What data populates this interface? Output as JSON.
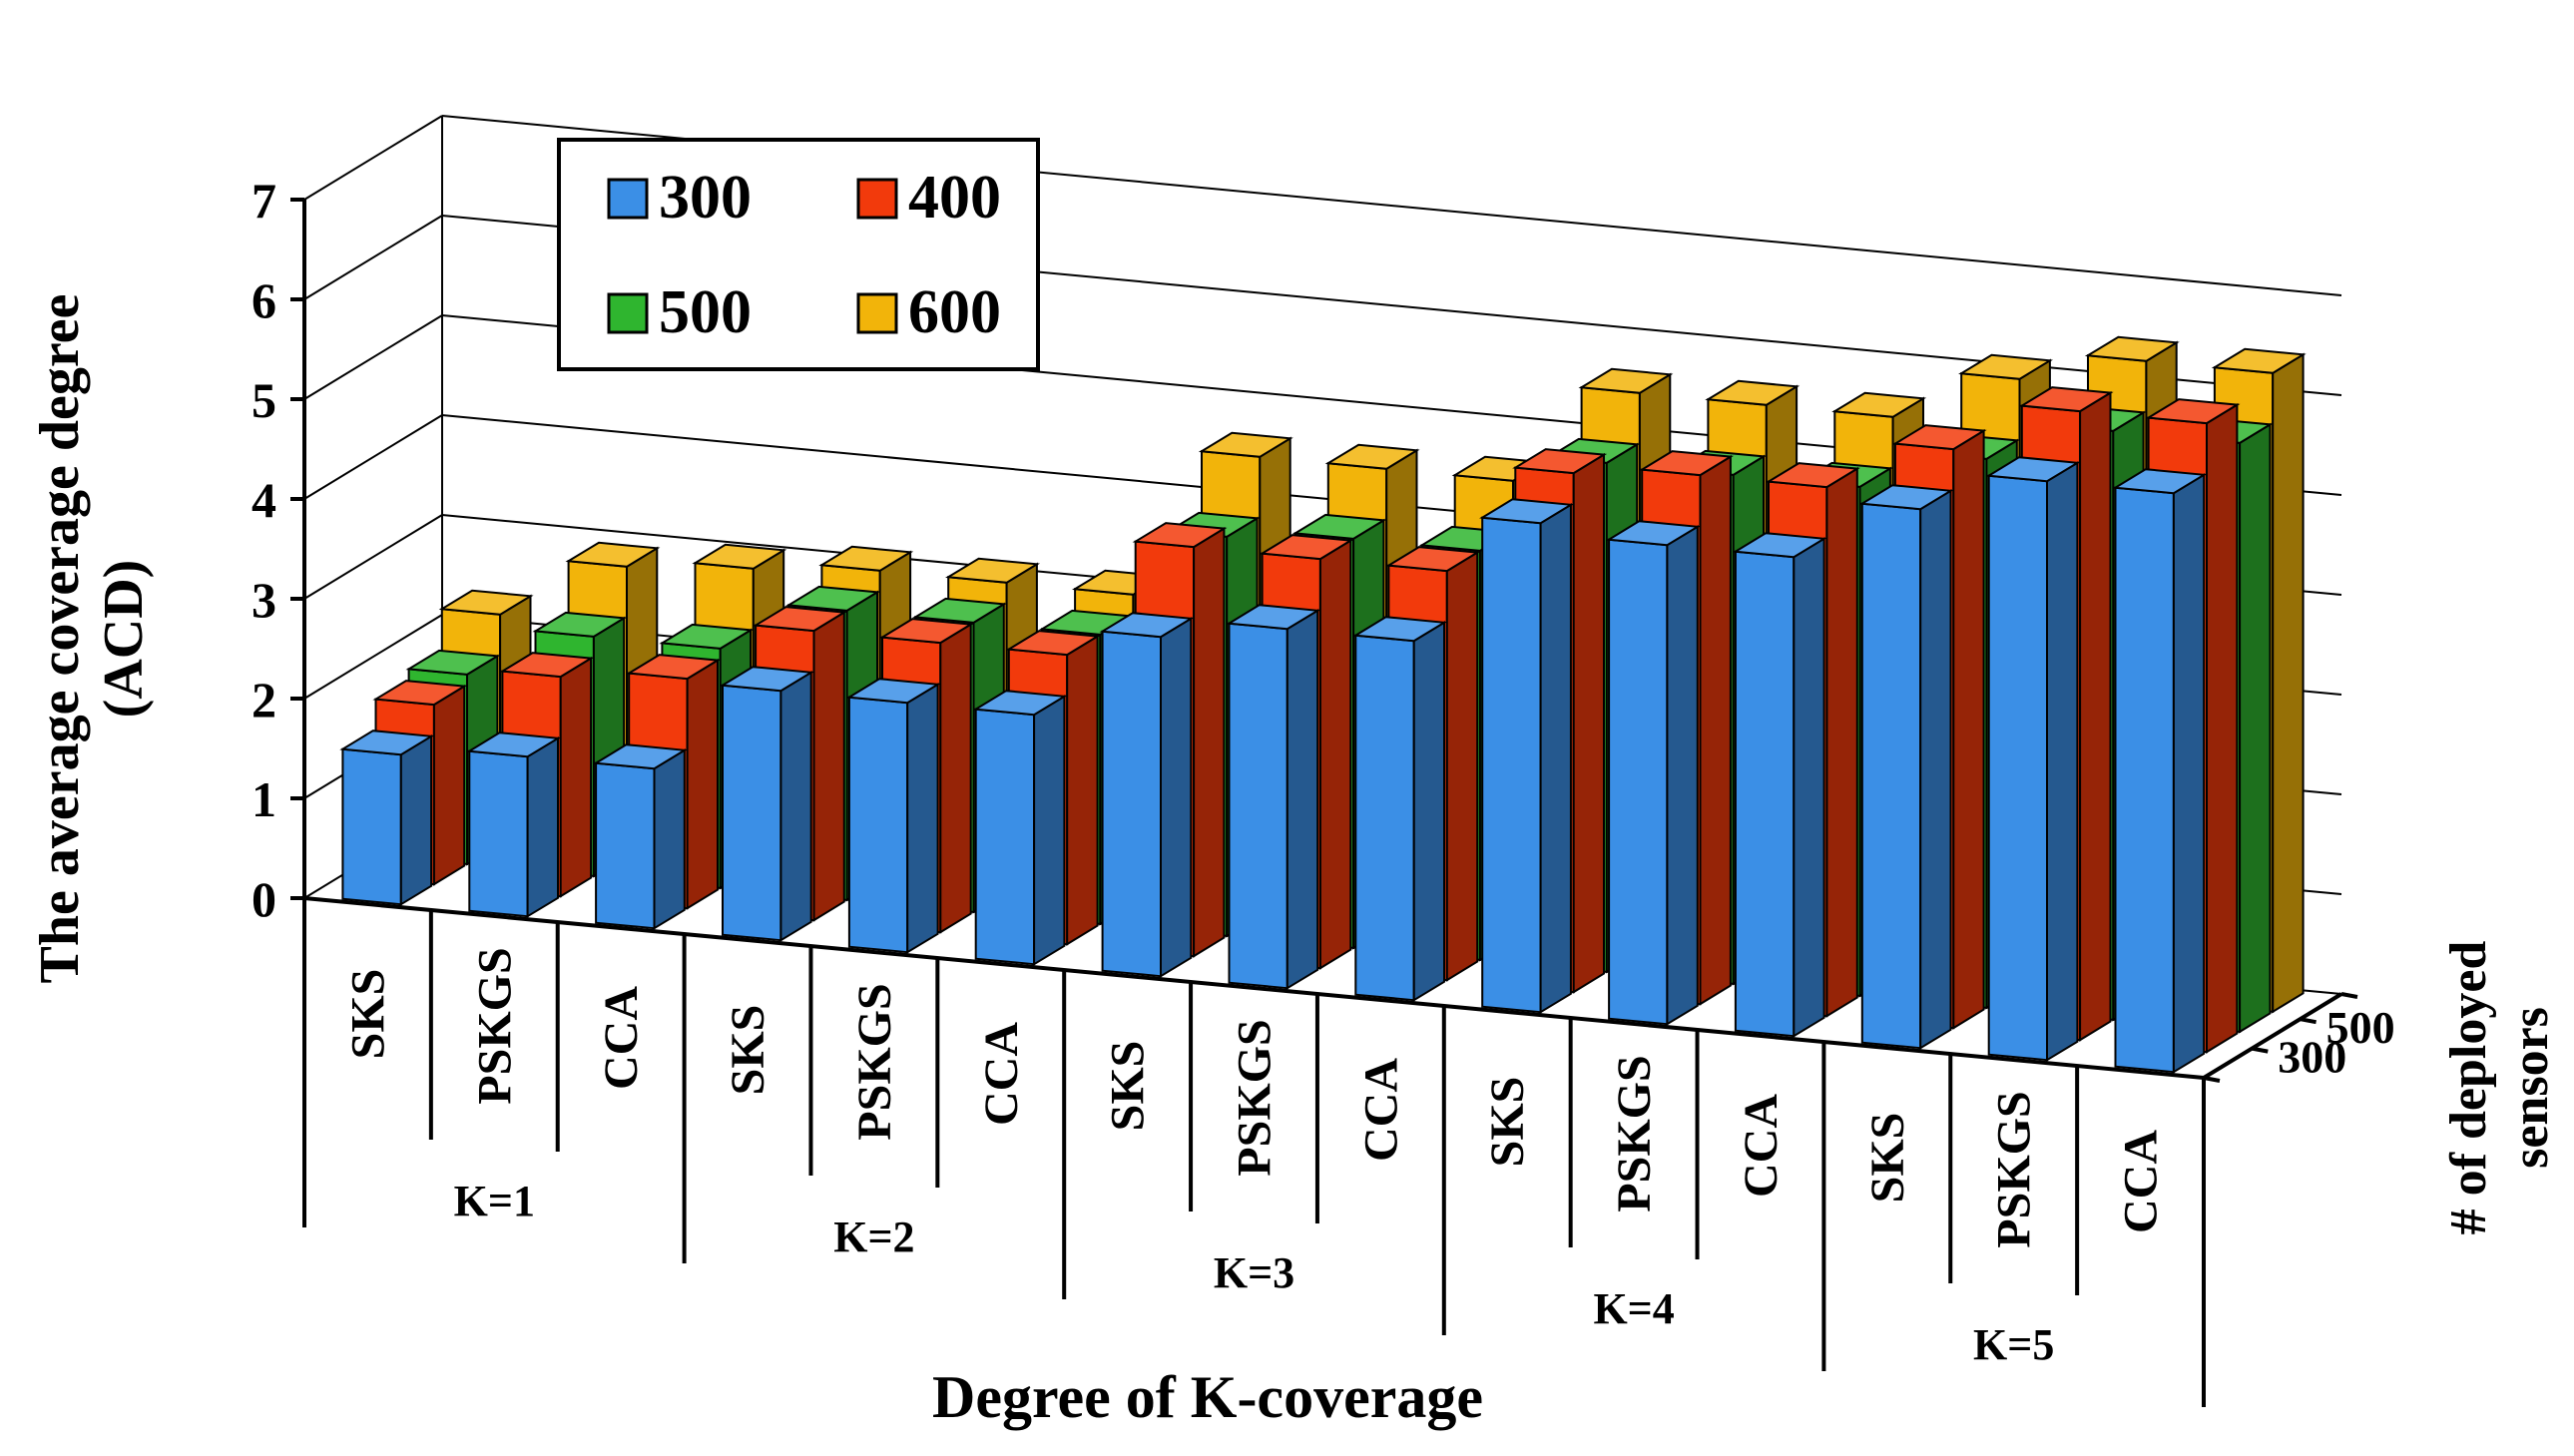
{
  "chart_data": {
    "type": "bar",
    "subtype": "3d-clustered-bar",
    "title": "",
    "xlabel": "Degree of K-coverage",
    "ylabel": "The average coverage degree\n(ACD)",
    "zlabel": "# of deployed\nsensors",
    "ylim": [
      0,
      7
    ],
    "yticks": [
      "0",
      "1",
      "2",
      "3",
      "4",
      "5",
      "6",
      "7"
    ],
    "ztick_labels": [
      "300",
      "500"
    ],
    "groups": [
      "K=1",
      "K=2",
      "K=3",
      "K=4",
      "K=5"
    ],
    "methods": [
      "SKS",
      "PSKGS",
      "CCA"
    ],
    "categories": [
      "SKS",
      "PSKGS",
      "CCA",
      "SKS",
      "PSKGS",
      "CCA",
      "SKS",
      "PSKGS",
      "CCA",
      "SKS",
      "PSKGS",
      "CCA",
      "SKS",
      "PSKGS",
      "CCA"
    ],
    "legend": {
      "position": "top-left",
      "entries": [
        "300",
        "400",
        "500",
        "600"
      ]
    },
    "series": [
      {
        "name": "300",
        "color": "#3b8fe6",
        "values": [
          1.5,
          1.6,
          1.6,
          2.5,
          2.5,
          2.5,
          3.4,
          3.6,
          3.6,
          4.9,
          4.8,
          4.8,
          5.4,
          5.8,
          5.8
        ]
      },
      {
        "name": "400",
        "color": "#f23a0c",
        "values": [
          1.8,
          2.2,
          2.3,
          2.9,
          2.9,
          2.9,
          4.1,
          4.1,
          4.1,
          5.2,
          5.3,
          5.3,
          5.8,
          6.3,
          6.3
        ]
      },
      {
        "name": "500",
        "color": "#2fb52f",
        "values": [
          1.9,
          2.4,
          2.4,
          2.9,
          2.9,
          2.9,
          4.0,
          4.1,
          4.1,
          5.1,
          5.1,
          5.1,
          5.5,
          5.9,
          5.9
        ]
      },
      {
        "name": "600",
        "color": "#f2b40a",
        "values": [
          2.3,
          2.9,
          3.0,
          3.1,
          3.1,
          3.1,
          4.6,
          4.6,
          4.6,
          5.6,
          5.6,
          5.6,
          6.1,
          6.4,
          6.4
        ]
      }
    ]
  }
}
